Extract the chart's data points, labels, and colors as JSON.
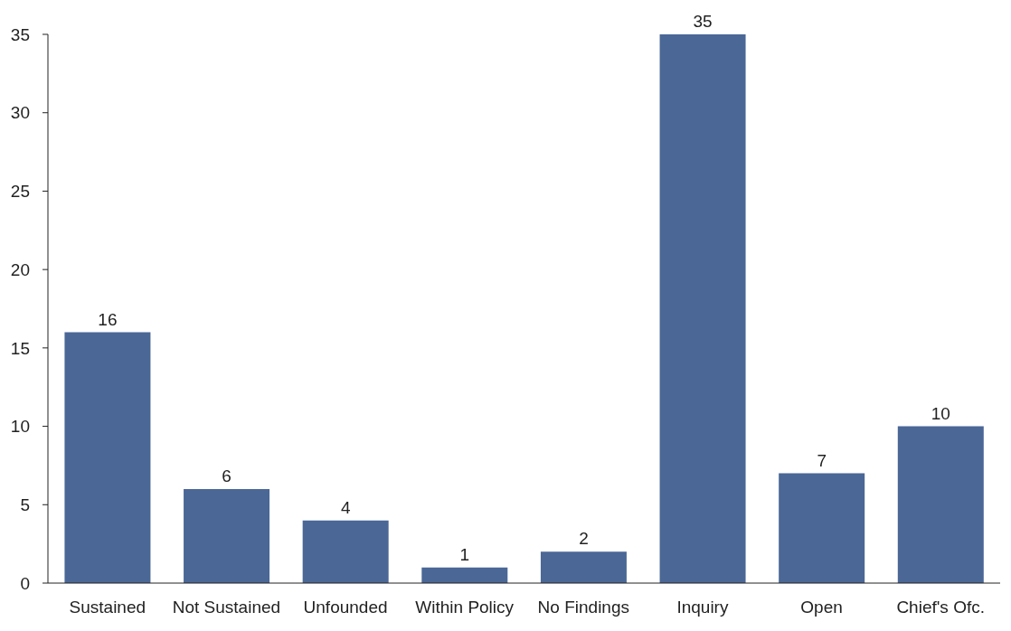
{
  "chart_data": {
    "type": "bar",
    "categories": [
      "Sustained",
      "Not Sustained",
      "Unfounded",
      "Within Policy",
      "No Findings",
      "Inquiry",
      "Open",
      "Chief's Ofc."
    ],
    "values": [
      16,
      6,
      4,
      1,
      2,
      35,
      7,
      10
    ],
    "color": "#4a6796",
    "ylim": [
      0,
      35
    ],
    "yticks": [
      0,
      5,
      10,
      15,
      20,
      25,
      30,
      35
    ],
    "grid": false,
    "data_labels": true
  }
}
